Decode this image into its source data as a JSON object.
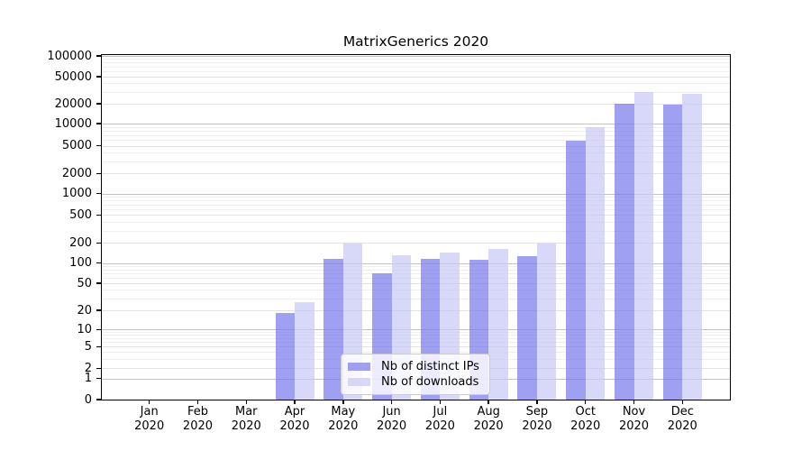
{
  "chart_data": {
    "type": "bar",
    "title": "MatrixGenerics 2020",
    "y_scale": "symlog",
    "grid": true,
    "legend_position": "lower center",
    "background_color": "#ffffff",
    "categories": [
      "Jan 2020",
      "Feb 2020",
      "Mar 2020",
      "Apr 2020",
      "May 2020",
      "Jun 2020",
      "Jul 2020",
      "Aug 2020",
      "Sep 2020",
      "Oct 2020",
      "Nov 2020",
      "Dec 2020"
    ],
    "x_tick_months": [
      "Jan",
      "Feb",
      "Mar",
      "Apr",
      "May",
      "Jun",
      "Jul",
      "Aug",
      "Sep",
      "Oct",
      "Nov",
      "Dec"
    ],
    "x_tick_year": "2020",
    "y_ticks": [
      0,
      1,
      2,
      5,
      10,
      20,
      50,
      100,
      200,
      500,
      1000,
      2000,
      5000,
      10000,
      20000,
      50000,
      100000
    ],
    "ylim": [
      0,
      100000
    ],
    "series": [
      {
        "name": "Nb of distinct IPs",
        "color": "rgba(119,119,238,0.70)",
        "values": [
          0,
          0,
          0,
          18,
          116,
          70,
          115,
          113,
          128,
          5800,
          20200,
          19400
        ]
      },
      {
        "name": "Nb of downloads",
        "color": "rgba(200,200,246,0.70)",
        "values": [
          0,
          0,
          0,
          26,
          196,
          131,
          144,
          164,
          197,
          8900,
          30000,
          28200
        ]
      }
    ]
  }
}
